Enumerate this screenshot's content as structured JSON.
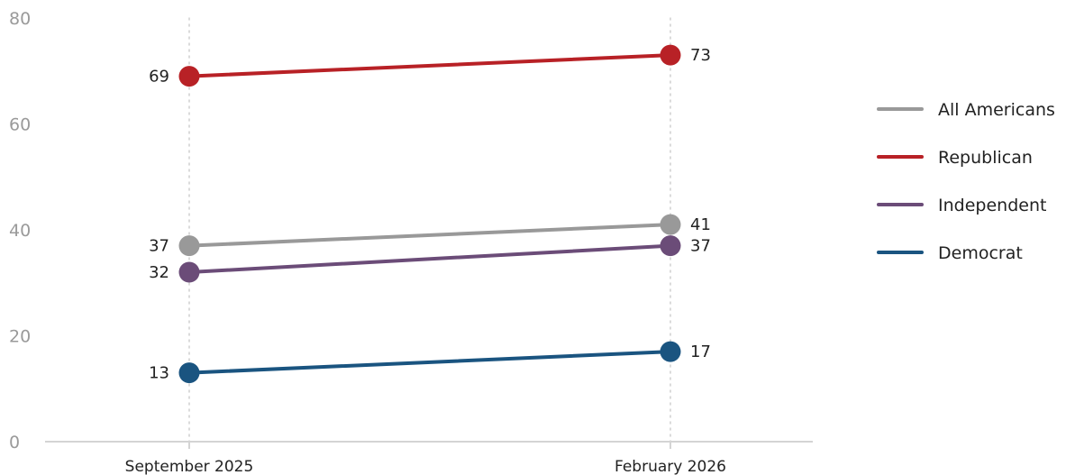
{
  "chart_data": {
    "type": "line",
    "x": [
      "September 2025",
      "February 2026"
    ],
    "ylim": [
      0,
      80
    ],
    "yticks": [
      0,
      20,
      40,
      60,
      80
    ],
    "grid": "vertical dotted lines at each x category",
    "legend_position": "right",
    "series": [
      {
        "name": "All Americans",
        "values": [
          37,
          41
        ],
        "labels": [
          "37",
          "41"
        ],
        "color": "#999999"
      },
      {
        "name": "Republican",
        "values": [
          69,
          73
        ],
        "labels": [
          "69",
          "73"
        ],
        "color": "#b82126"
      },
      {
        "name": "Independent",
        "values": [
          32,
          37
        ],
        "labels": [
          "32",
          "37"
        ],
        "color": "#6b4c78"
      },
      {
        "name": "Democrat",
        "values": [
          13,
          17
        ],
        "labels": [
          "13",
          "17"
        ],
        "color": "#1a5480"
      }
    ]
  }
}
